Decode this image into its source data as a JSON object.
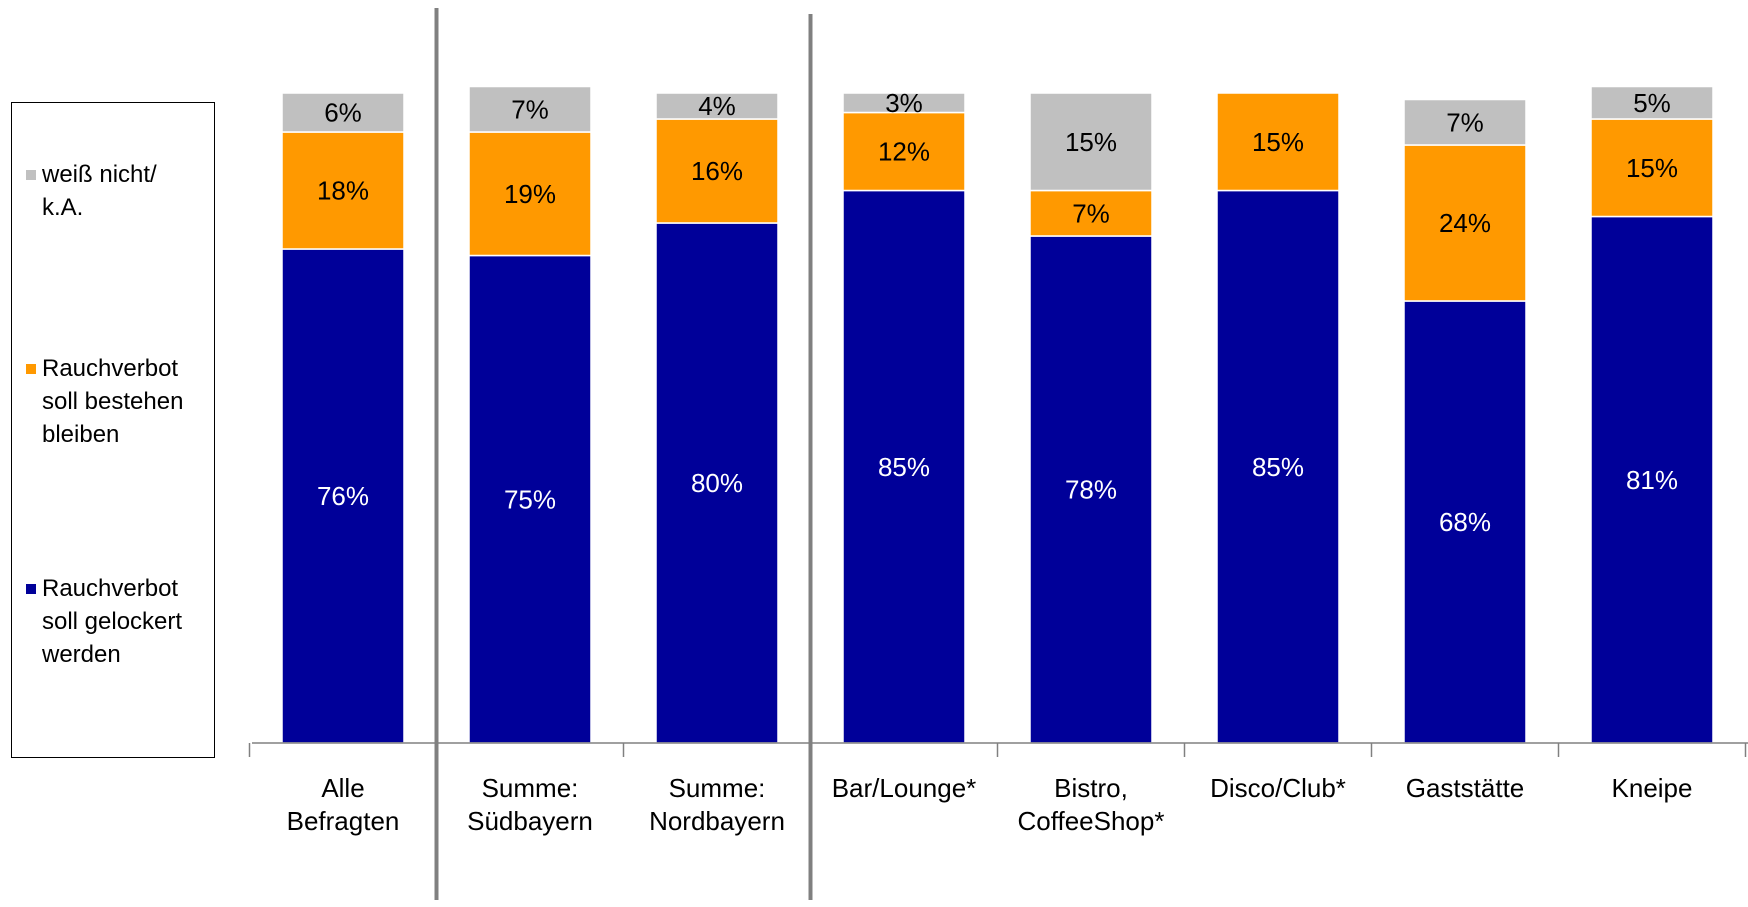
{
  "chart_data": {
    "type": "bar",
    "stacked": true,
    "orientation": "vertical",
    "percent_stacked": true,
    "categories": [
      "Alle\nBefragten",
      "Summe:\nSüdbayern",
      "Summe:\nNordbayern",
      "Bar/Lounge*",
      "Bistro,\nCoffeeShop*",
      "Disco/Club*",
      "Gaststätte",
      "Kneipe"
    ],
    "series": [
      {
        "name": "Rauchverbot soll gelockert werden",
        "color": "#000099",
        "label_color": "#ffffff",
        "values": [
          76,
          75,
          80,
          85,
          78,
          85,
          68,
          81
        ],
        "labels": [
          "76%",
          "75%",
          "80%",
          "85%",
          "78%",
          "85%",
          "68%",
          "81%"
        ]
      },
      {
        "name": "Rauchverbot soll bestehen bleiben",
        "color": "#ff9900",
        "label_color": "#000000",
        "values": [
          18,
          19,
          16,
          12,
          7,
          15,
          24,
          15
        ],
        "labels": [
          "18%",
          "19%",
          "16%",
          "12%",
          "7%",
          "15%",
          "24%",
          "15%"
        ]
      },
      {
        "name": "weiß nicht/ k.A.",
        "color": "#c0c0c0",
        "label_color": "#000000",
        "values": [
          6,
          7,
          4,
          3,
          15,
          0,
          7,
          5
        ],
        "labels": [
          "6%",
          "7%",
          "4%",
          "3%",
          "15%",
          "",
          "7%",
          "5%"
        ]
      }
    ],
    "ylim": [
      0,
      100
    ],
    "group_separators_after": [
      0,
      2
    ],
    "legend": {
      "placement": "left",
      "order": [
        2,
        1,
        0
      ],
      "items": [
        {
          "label": "weiß nicht/\nk.A.",
          "color": "#c0c0c0"
        },
        {
          "label": "Rauchverbot\nsoll bestehen\nbleiben",
          "color": "#ff9900"
        },
        {
          "label": "Rauchverbot\nsoll gelockert\nwerden",
          "color": "#000099"
        }
      ]
    },
    "grid": false
  }
}
